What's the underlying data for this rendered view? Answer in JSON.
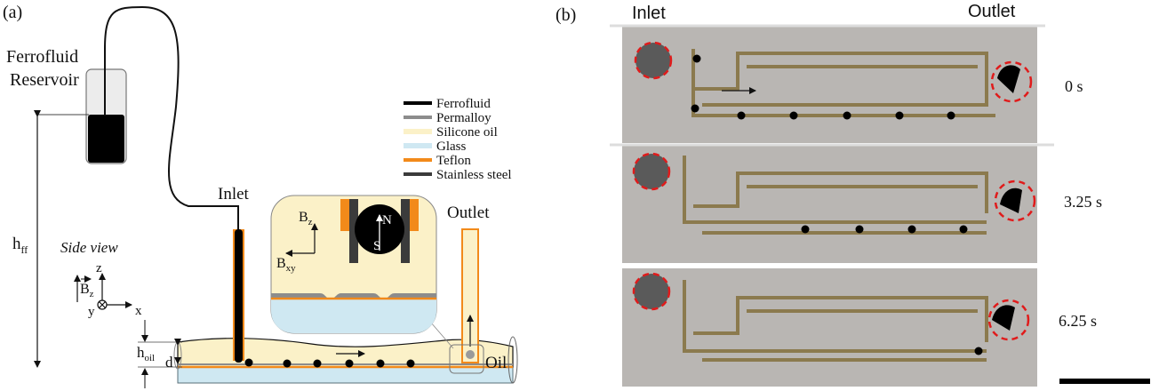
{
  "panel_a": {
    "label": "(a)",
    "reservoir_label_1": "Ferrofluid",
    "reservoir_label_2": "Reservoir",
    "inlet_label": "Inlet",
    "outlet_label": "Outlet",
    "side_view": "Side view",
    "h_ff": "h",
    "h_ff_sub": "ff",
    "h_oil": "h",
    "h_oil_sub": "oil",
    "d_label": "d",
    "oil_label": "Oil",
    "axis_z": "z",
    "axis_x": "x",
    "axis_y": "y",
    "bz_label": "B",
    "bz_sub": "z",
    "inset_bz": "B",
    "inset_bz_sub": "z",
    "inset_bxy": "B",
    "inset_bxy_sub": "xy",
    "magnet_n": "N",
    "magnet_s": "S",
    "legend": [
      {
        "label": "Ferrofluid",
        "color": "#000000"
      },
      {
        "label": "Permalloy",
        "color": "#8c8c8c"
      },
      {
        "label": "Silicone oil",
        "color": "#fbf1c8"
      },
      {
        "label": "Glass",
        "color": "#cfe8f2"
      },
      {
        "label": "Teflon",
        "color": "#f28a1a"
      },
      {
        "label": "Stainless steel",
        "color": "#3b3b3b"
      }
    ]
  },
  "panel_b": {
    "label": "(b)",
    "inlet_label": "Inlet",
    "outlet_label": "Outlet",
    "frames": [
      {
        "time": "0 s"
      },
      {
        "time": "3.25 s"
      },
      {
        "time": "6.25 s"
      }
    ]
  }
}
